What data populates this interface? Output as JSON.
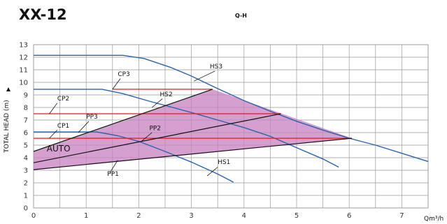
{
  "chart_data": {
    "type": "line",
    "title": "XX-12",
    "subtitle": "Q-H",
    "xlabel": "Qm³/h",
    "ylabel": "TOTAL HEAD (m)",
    "xlim": [
      0,
      7.5
    ],
    "ylim": [
      0,
      13
    ],
    "x_ticks": [
      "0",
      "1",
      "2",
      "3",
      "4",
      "5",
      "6",
      "7"
    ],
    "y_ticks": [
      "0",
      "1",
      "2",
      "3",
      "4",
      "5",
      "6",
      "7",
      "8",
      "9",
      "10",
      "11",
      "12",
      "13"
    ],
    "grid": true,
    "annotations": {
      "auto_label": "AUTO",
      "auto_label_pos": [
        0.25,
        4.5
      ],
      "auto_region": [
        [
          0,
          4.5
        ],
        [
          3.4,
          9.45
        ],
        [
          6.05,
          5.55
        ],
        [
          0,
          3.05
        ]
      ]
    },
    "colors": {
      "speed_curve": "#2a64ad",
      "constant_pressure": "#e01b24",
      "proportional_pressure": "#111111",
      "auto_fill": "#c77fbf",
      "grid": "#999999"
    },
    "series": [
      {
        "name": "HS3",
        "kind": "speed",
        "label_pos": [
          3.35,
          11.1
        ],
        "leader": [
          [
            3.45,
            10.9
          ],
          [
            3.05,
            10.1
          ]
        ],
        "points": [
          [
            0,
            12.15
          ],
          [
            1.7,
            12.15
          ],
          [
            2.1,
            11.9
          ],
          [
            2.6,
            11.2
          ],
          [
            3,
            10.5
          ],
          [
            3.5,
            9.5
          ],
          [
            4,
            8.55
          ],
          [
            4.5,
            7.7
          ],
          [
            5,
            6.9
          ],
          [
            5.5,
            6.2
          ],
          [
            6,
            5.55
          ],
          [
            6.5,
            5
          ],
          [
            7,
            4.35
          ],
          [
            7.5,
            3.7
          ]
        ]
      },
      {
        "name": "HS2",
        "kind": "speed",
        "label_pos": [
          2.4,
          8.9
        ],
        "leader": [
          [
            2.45,
            8.7
          ],
          [
            2.25,
            8.0
          ]
        ],
        "points": [
          [
            0,
            9.45
          ],
          [
            1.3,
            9.45
          ],
          [
            1.7,
            9.1
          ],
          [
            2.2,
            8.5
          ],
          [
            3,
            7.6
          ],
          [
            3.5,
            7
          ],
          [
            4,
            6.4
          ],
          [
            4.5,
            5.7
          ],
          [
            5,
            4.8
          ],
          [
            5.5,
            3.9
          ],
          [
            5.8,
            3.25
          ]
        ]
      },
      {
        "name": "HS1",
        "kind": "speed",
        "label_pos": [
          3.5,
          3.5
        ],
        "leader": [
          [
            3.5,
            3.25
          ],
          [
            3.3,
            2.55
          ]
        ],
        "points": [
          [
            0,
            6.05
          ],
          [
            1.2,
            6.05
          ],
          [
            1.6,
            5.75
          ],
          [
            2,
            5.3
          ],
          [
            2.5,
            4.5
          ],
          [
            3,
            3.65
          ],
          [
            3.5,
            2.7
          ],
          [
            3.8,
            2.05
          ]
        ]
      },
      {
        "name": "CP3",
        "kind": "constant",
        "label_pos": [
          1.6,
          10.5
        ],
        "leader": [
          [
            1.65,
            10.3
          ],
          [
            1.5,
            9.45
          ]
        ],
        "points": [
          [
            1.5,
            9.45
          ],
          [
            3.4,
            9.45
          ]
        ]
      },
      {
        "name": "CP2",
        "kind": "constant",
        "label_pos": [
          0.45,
          8.55
        ],
        "leader": [
          [
            0.45,
            8.35
          ],
          [
            0.3,
            7.5
          ]
        ],
        "points": [
          [
            0,
            7.5
          ],
          [
            4.7,
            7.5
          ]
        ]
      },
      {
        "name": "CP1",
        "kind": "constant",
        "label_pos": [
          0.45,
          6.4
        ],
        "leader": [
          [
            0.45,
            6.2
          ],
          [
            0.3,
            5.55
          ]
        ],
        "points": [
          [
            0,
            5.55
          ],
          [
            6.05,
            5.55
          ]
        ]
      },
      {
        "name": "PP3",
        "kind": "proportional",
        "label_pos": [
          1.0,
          7.1
        ],
        "leader": [
          [
            1.05,
            6.9
          ],
          [
            0.85,
            6.0
          ]
        ],
        "points": [
          [
            0,
            4.5
          ],
          [
            3.4,
            9.45
          ]
        ]
      },
      {
        "name": "PP2",
        "kind": "proportional",
        "label_pos": [
          2.2,
          6.2
        ],
        "leader": [
          [
            2.25,
            6.0
          ],
          [
            2.05,
            5.3
          ]
        ],
        "points": [
          [
            0,
            3.6
          ],
          [
            4.7,
            7.5
          ]
        ]
      },
      {
        "name": "PP1",
        "kind": "proportional",
        "label_pos": [
          1.4,
          2.55
        ],
        "leader": [
          [
            1.45,
            2.8
          ],
          [
            1.6,
            3.8
          ]
        ],
        "points": [
          [
            0,
            3.05
          ],
          [
            6.05,
            5.55
          ]
        ]
      }
    ]
  }
}
